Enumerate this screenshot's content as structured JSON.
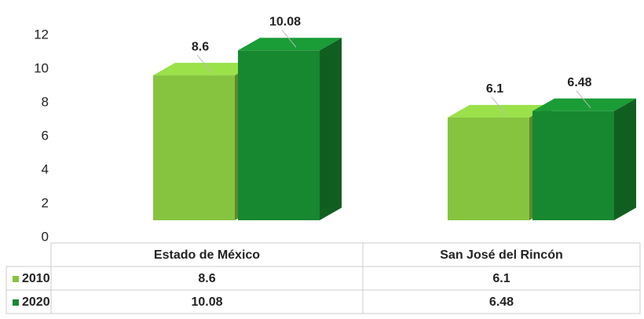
{
  "chart_data": {
    "type": "bar",
    "categories": [
      "Estado de México",
      "San José del Rincón"
    ],
    "series": [
      {
        "name": "2010",
        "color": "#86c440",
        "values": [
          8.6,
          6.1
        ]
      },
      {
        "name": "2020",
        "color": "#17882f",
        "values": [
          10.08,
          6.48
        ]
      }
    ],
    "ylim": [
      0,
      12
    ],
    "yticks": [
      0,
      2,
      4,
      6,
      8,
      10,
      12
    ],
    "grid": false,
    "data_table": true
  }
}
